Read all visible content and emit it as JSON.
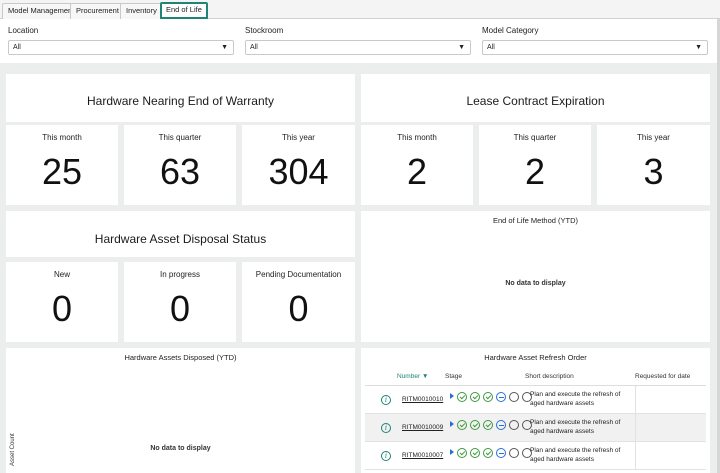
{
  "tabs": [
    {
      "label": "Model Management"
    },
    {
      "label": "Procurement"
    },
    {
      "label": "Inventory"
    },
    {
      "label": "End of Life",
      "active": true
    }
  ],
  "filters": [
    {
      "label": "Location",
      "value": "All"
    },
    {
      "label": "Stockroom",
      "value": "All"
    },
    {
      "label": "Model Category",
      "value": "All"
    }
  ],
  "warranty": {
    "title": "Hardware Nearing End of Warranty",
    "stats": [
      {
        "label": "This month",
        "value": "25"
      },
      {
        "label": "This quarter",
        "value": "63"
      },
      {
        "label": "This year",
        "value": "304"
      }
    ]
  },
  "lease": {
    "title": "Lease Contract Expiration",
    "stats": [
      {
        "label": "This month",
        "value": "2"
      },
      {
        "label": "This quarter",
        "value": "2"
      },
      {
        "label": "This year",
        "value": "3"
      }
    ]
  },
  "disposal": {
    "title": "Hardware Asset Disposal Status",
    "stats": [
      {
        "label": "New",
        "value": "0"
      },
      {
        "label": "In progress",
        "value": "0"
      },
      {
        "label": "Pending Documentation",
        "value": "0"
      }
    ]
  },
  "eol_method": {
    "title": "End of Life Method (YTD)",
    "empty": "No data to display"
  },
  "disposed": {
    "title": "Hardware Assets Disposed (YTD)",
    "empty": "No data to display",
    "y_axis": "Asset Count"
  },
  "refresh": {
    "title": "Hardware Asset Refresh Order",
    "columns": {
      "number": "Number",
      "stage": "Stage",
      "desc": "Short description",
      "requested": "Requested for date"
    },
    "rows": [
      {
        "number": "RITM0010010",
        "desc": "Plan and execute the refresh of aged hardware assets",
        "requested": ""
      },
      {
        "number": "RITM0010009",
        "desc": "Plan and execute the refresh of aged hardware assets",
        "requested": ""
      },
      {
        "number": "RITM0010007",
        "desc": "Plan and execute the refresh of aged hardware assets",
        "requested": ""
      }
    ]
  },
  "colors": {
    "accent": "#1f8476",
    "stage_done": "#3d9a3d",
    "stage_current": "#2a6fd6"
  },
  "icons": {
    "info": "info-circle-icon",
    "sort": "sort-down-icon",
    "dropdown": "chevron-down-icon"
  }
}
